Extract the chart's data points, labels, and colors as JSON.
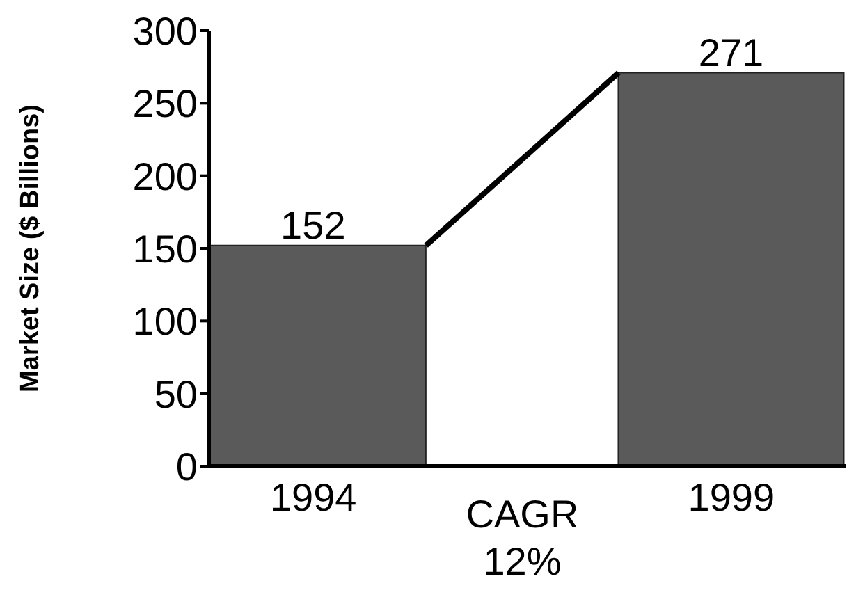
{
  "chart_data": {
    "type": "bar",
    "ylabel": "Market Size ($ Billions)",
    "categories": [
      "1994",
      "1999"
    ],
    "values": [
      152,
      271
    ],
    "color": "#5a5a5a",
    "ylim": [
      0,
      300
    ],
    "yticks": [
      0,
      50,
      100,
      150,
      200,
      250,
      300
    ],
    "data_labels": true,
    "annotations": [
      "CAGR 12%"
    ]
  }
}
